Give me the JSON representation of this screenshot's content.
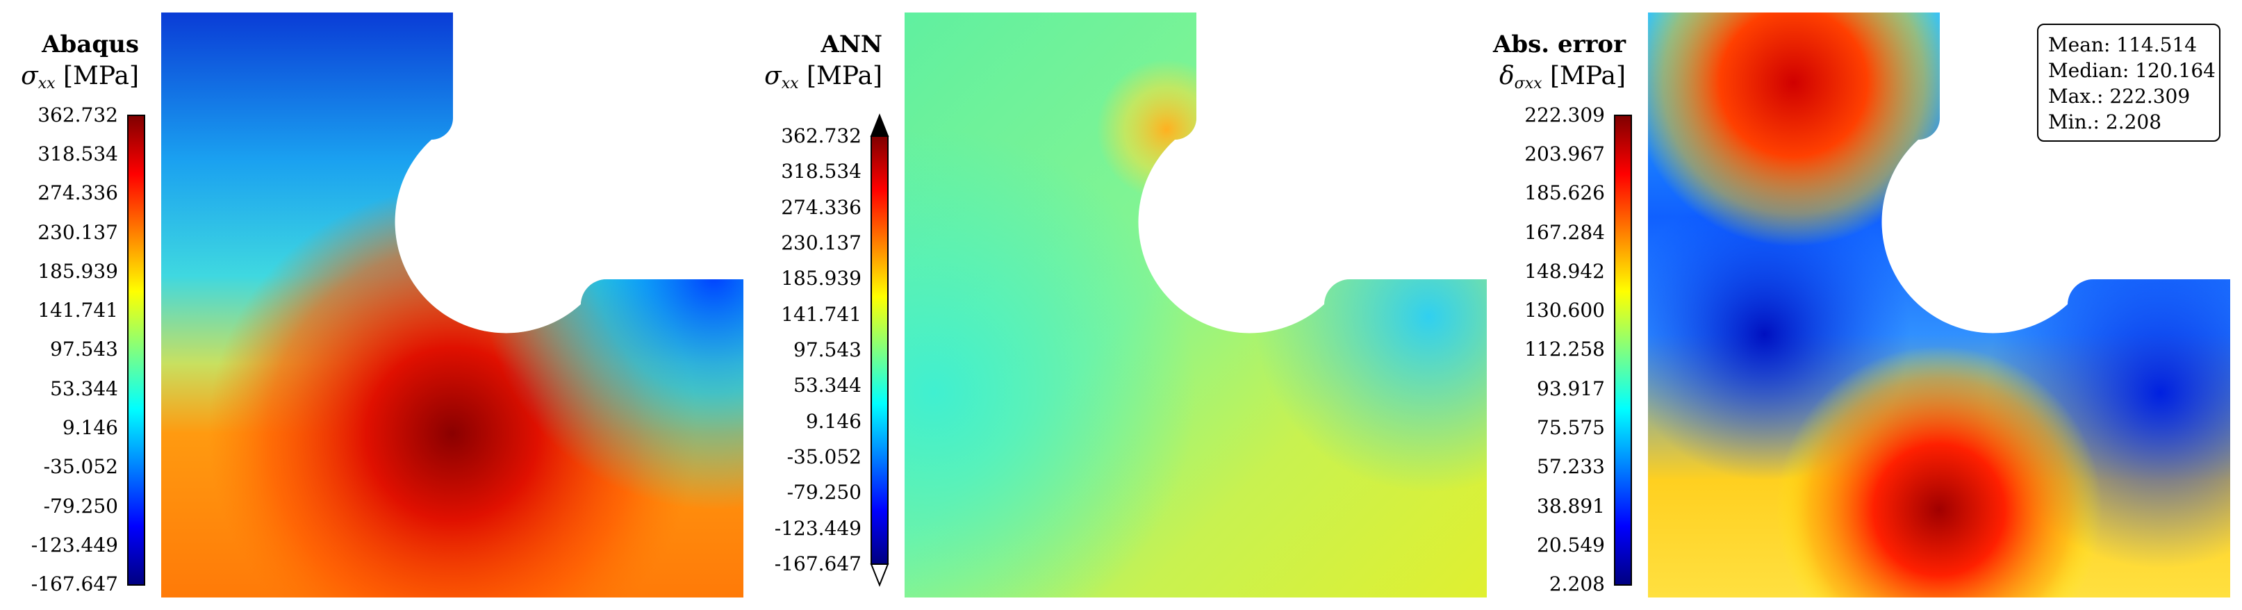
{
  "figure": {
    "panels": [
      {
        "id": "abaqus",
        "title": "Abaqus",
        "quantity_symbol": "σ",
        "quantity_subscript": "xx",
        "unit": "[MPa]",
        "colorbar_ticks": [
          "362.732",
          "318.534",
          "274.336",
          "230.137",
          "185.939",
          "141.741",
          "97.543",
          "53.344",
          "9.146",
          "-35.052",
          "-79.250",
          "-123.449",
          "-167.647"
        ],
        "colorbar_extend_arrows": false
      },
      {
        "id": "ann",
        "title": "ANN",
        "quantity_symbol": "σ",
        "quantity_subscript": "xx",
        "unit": "[MPa]",
        "colorbar_ticks": [
          "362.732",
          "318.534",
          "274.336",
          "230.137",
          "185.939",
          "141.741",
          "97.543",
          "53.344",
          "9.146",
          "-35.052",
          "-79.250",
          "-123.449",
          "-167.647"
        ],
        "colorbar_extend_arrows": true
      },
      {
        "id": "error",
        "title": "Abs. error",
        "quantity_symbol": "δ",
        "quantity_subscript": "σxx",
        "unit": "[MPa]",
        "colorbar_ticks": [
          "222.309",
          "203.967",
          "185.626",
          "167.284",
          "148.942",
          "130.600",
          "112.258",
          "93.917",
          "75.575",
          "57.233",
          "38.891",
          "20.549",
          "2.208"
        ],
        "colorbar_extend_arrows": false
      }
    ],
    "stats": {
      "mean_label": "Mean: 114.514",
      "median_label": "Median: 120.164",
      "max_label": "Max.: 222.309",
      "min_label": "Min.: 2.208"
    },
    "colormap": [
      "#00007f",
      "#0000ff",
      "#0080ff",
      "#00ffff",
      "#80ff80",
      "#ffff00",
      "#ff8000",
      "#ff0000",
      "#7f0000"
    ]
  }
}
